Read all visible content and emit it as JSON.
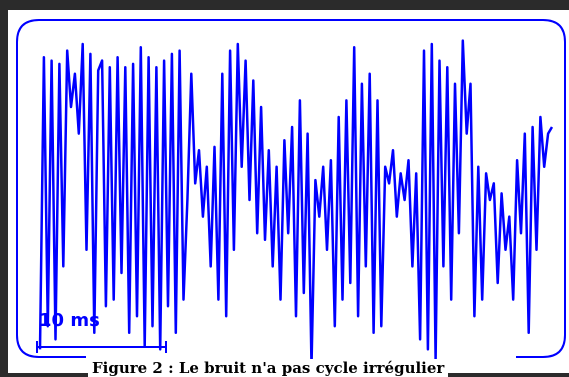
{
  "chart_data": {
    "type": "line",
    "title": "",
    "xlabel": "",
    "ylabel": "",
    "grid": false,
    "line_color": "#0000ff",
    "frame_color": "#0000ff",
    "scale_bar": {
      "label": "10 ms"
    },
    "caption": "Figure 2 : Le bruit n'a pas cycle irrégulier",
    "y": [
      0.05,
      0.93,
      0.12,
      0.92,
      0.08,
      0.91,
      0.3,
      0.95,
      0.78,
      0.88,
      0.7,
      0.97,
      0.35,
      0.94,
      0.1,
      0.89,
      0.92,
      0.18,
      0.9,
      0.2,
      0.93,
      0.28,
      0.9,
      0.1,
      0.91,
      0.15,
      0.96,
      0.06,
      0.93,
      0.12,
      0.9,
      0.05,
      0.92,
      0.18,
      0.94,
      0.1,
      0.95,
      0.2,
      0.5,
      0.88,
      0.55,
      0.65,
      0.45,
      0.6,
      0.3,
      0.66,
      0.2,
      0.88,
      0.15,
      0.95,
      0.35,
      0.97,
      0.6,
      0.92,
      0.5,
      0.86,
      0.4,
      0.78,
      0.38,
      0.65,
      0.3,
      0.6,
      0.2,
      0.68,
      0.4,
      0.72,
      0.15,
      0.8,
      0.22,
      0.7,
      0.0,
      0.56,
      0.45,
      0.6,
      0.35,
      0.62,
      0.12,
      0.75,
      0.2,
      0.8,
      0.25,
      0.96,
      0.15,
      0.85,
      0.3,
      0.88,
      0.1,
      0.8,
      0.12,
      0.6,
      0.55,
      0.65,
      0.45,
      0.58,
      0.5,
      0.62,
      0.3,
      0.58,
      0.08,
      0.95,
      0.05,
      0.97,
      0.02,
      0.92,
      0.3,
      0.9,
      0.2,
      0.85,
      0.4,
      0.98,
      0.7,
      0.85,
      0.15,
      0.6,
      0.2,
      0.58,
      0.5,
      0.55,
      0.25,
      0.52,
      0.35,
      0.45,
      0.2,
      0.62,
      0.4,
      0.7,
      0.1,
      0.72,
      0.35,
      0.75,
      0.6,
      0.7,
      0.72
    ]
  }
}
